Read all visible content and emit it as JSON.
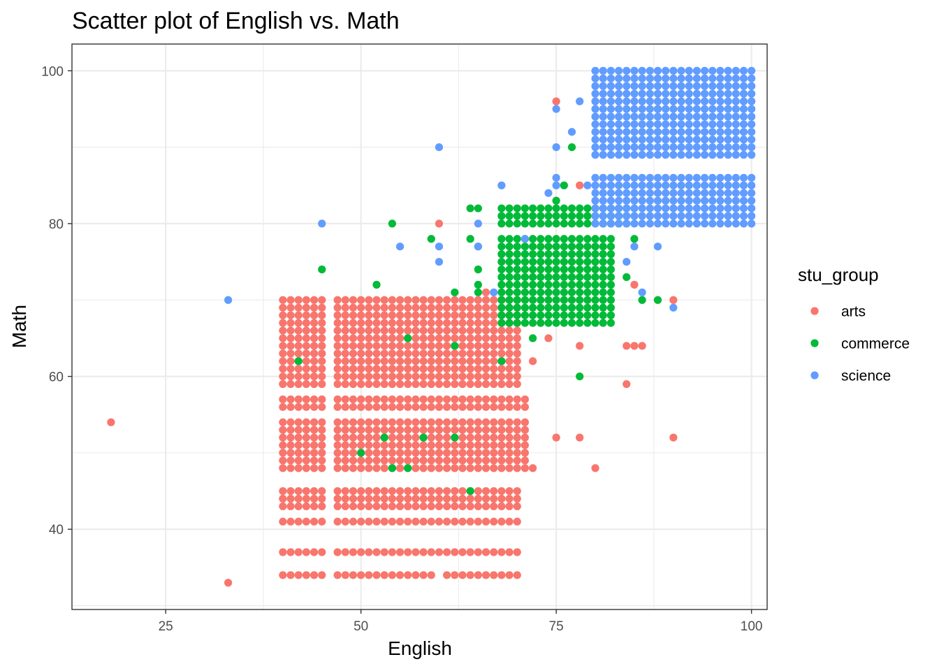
{
  "chart_data": {
    "type": "scatter",
    "title": "Scatter plot of English vs. Math",
    "xlabel": "English",
    "ylabel": "Math",
    "xlim": [
      13,
      102
    ],
    "ylim": [
      29.5,
      103.5
    ],
    "x_ticks": [
      25,
      50,
      75,
      100
    ],
    "y_ticks": [
      40,
      60,
      80,
      100
    ],
    "grid": true,
    "legend": {
      "title": "stu_group",
      "position": "right"
    },
    "colors": {
      "arts": "#F8766D",
      "commerce": "#00BA38",
      "science": "#619CFF"
    },
    "series": [
      {
        "name": "arts",
        "blocks": [
          {
            "x": [
              40,
              45
            ],
            "y": [
              59,
              70
            ]
          },
          {
            "x": [
              47,
              70
            ],
            "y": [
              59,
              70
            ]
          },
          {
            "x": [
              40,
              45
            ],
            "y": [
              56,
              57
            ]
          },
          {
            "x": [
              47,
              71
            ],
            "y": [
              56,
              57
            ]
          },
          {
            "x": [
              40,
              45
            ],
            "y": [
              48,
              54
            ]
          },
          {
            "x": [
              47,
              71
            ],
            "y": [
              48,
              54
            ]
          },
          {
            "x": [
              40,
              45
            ],
            "y": [
              43,
              45
            ]
          },
          {
            "x": [
              47,
              70
            ],
            "y": [
              43,
              45
            ]
          },
          {
            "x": [
              40,
              45
            ],
            "y": [
              41,
              41
            ]
          },
          {
            "x": [
              47,
              70
            ],
            "y": [
              41,
              41
            ]
          },
          {
            "x": [
              40,
              45
            ],
            "y": [
              37,
              37
            ]
          },
          {
            "x": [
              47,
              70
            ],
            "y": [
              37,
              37
            ]
          },
          {
            "x": [
              40,
              45
            ],
            "y": [
              34,
              34
            ]
          },
          {
            "x": [
              47,
              59
            ],
            "y": [
              34,
              34
            ]
          },
          {
            "x": [
              61,
              70
            ],
            "y": [
              34,
              34
            ]
          }
        ],
        "points": [
          [
            18,
            54
          ],
          [
            33,
            33
          ],
          [
            60,
            80
          ],
          [
            75,
            96
          ],
          [
            78,
            85
          ],
          [
            85,
            72
          ],
          [
            90,
            70
          ],
          [
            73,
            67
          ],
          [
            74,
            65
          ],
          [
            72,
            62
          ],
          [
            78,
            64
          ],
          [
            84,
            64
          ],
          [
            85,
            64
          ],
          [
            86,
            64
          ],
          [
            84,
            59
          ],
          [
            75,
            52
          ],
          [
            78,
            52
          ],
          [
            90,
            52
          ],
          [
            72,
            48
          ],
          [
            80,
            48
          ],
          [
            66,
            71
          ]
        ]
      },
      {
        "name": "commerce",
        "blocks": [
          {
            "x": [
              68,
              82
            ],
            "y": [
              67,
              75
            ]
          },
          {
            "x": [
              68,
              82
            ],
            "y": [
              76,
              78
            ]
          },
          {
            "x": [
              68,
              84
            ],
            "y": [
              80,
              82
            ]
          }
        ],
        "points": [
          [
            88,
            95
          ],
          [
            77,
            90
          ],
          [
            76,
            85
          ],
          [
            75,
            83
          ],
          [
            64,
            82
          ],
          [
            65,
            82
          ],
          [
            54,
            80
          ],
          [
            59,
            78
          ],
          [
            64,
            78
          ],
          [
            65,
            77
          ],
          [
            85,
            78
          ],
          [
            45,
            74
          ],
          [
            65,
            74
          ],
          [
            84,
            73
          ],
          [
            52,
            72
          ],
          [
            65,
            72
          ],
          [
            62,
            71
          ],
          [
            65,
            71
          ],
          [
            86,
            70
          ],
          [
            88,
            70
          ],
          [
            72,
            65
          ],
          [
            56,
            65
          ],
          [
            62,
            64
          ],
          [
            42,
            62
          ],
          [
            68,
            62
          ],
          [
            78,
            60
          ],
          [
            53,
            52
          ],
          [
            58,
            52
          ],
          [
            62,
            52
          ],
          [
            50,
            50
          ],
          [
            54,
            48
          ],
          [
            56,
            48
          ],
          [
            64,
            45
          ]
        ]
      },
      {
        "name": "science",
        "blocks": [
          {
            "x": [
              80,
              100
            ],
            "y": [
              89,
              100
            ]
          },
          {
            "x": [
              80,
              100
            ],
            "y": [
              80,
              86
            ]
          }
        ],
        "points": [
          [
            75,
            95
          ],
          [
            78,
            96
          ],
          [
            77,
            92
          ],
          [
            75,
            90
          ],
          [
            60,
            90
          ],
          [
            75,
            86
          ],
          [
            75,
            85
          ],
          [
            74,
            84
          ],
          [
            68,
            85
          ],
          [
            79,
            85
          ],
          [
            45,
            80
          ],
          [
            65,
            80
          ],
          [
            55,
            77
          ],
          [
            60,
            77
          ],
          [
            65,
            77
          ],
          [
            85,
            77
          ],
          [
            88,
            77
          ],
          [
            60,
            75
          ],
          [
            84,
            75
          ],
          [
            86,
            71
          ],
          [
            90,
            69
          ],
          [
            33,
            70
          ],
          [
            67,
            71
          ],
          [
            71,
            78
          ]
        ]
      }
    ]
  }
}
